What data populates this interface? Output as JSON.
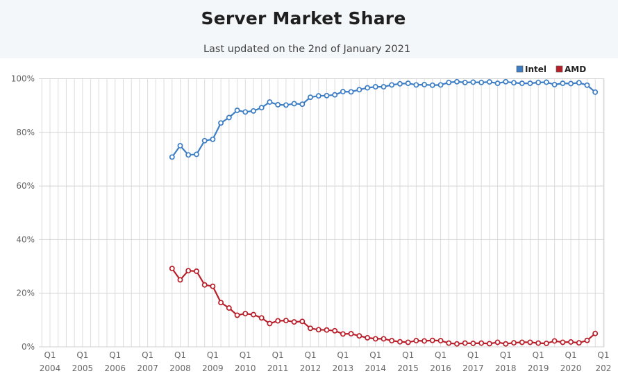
{
  "header": {
    "title": "Server Market Share",
    "subtitle": "Last updated on the 2nd of January 2021"
  },
  "chart_data": {
    "type": "line",
    "title": "Server Market Share",
    "subtitle": "Last updated on the 2nd of January 2021",
    "xlabel": "",
    "ylabel": "",
    "ylim": [
      0,
      100
    ],
    "y_ticks": [
      "0%",
      "20%",
      "40%",
      "60%",
      "80%",
      "100%"
    ],
    "x_ticks": [
      {
        "q": "Q1",
        "year": "2004"
      },
      {
        "q": "Q1",
        "year": "2005"
      },
      {
        "q": "Q1",
        "year": "2006"
      },
      {
        "q": "Q1",
        "year": "2007"
      },
      {
        "q": "Q1",
        "year": "2008"
      },
      {
        "q": "Q1",
        "year": "2009"
      },
      {
        "q": "Q1",
        "year": "2010"
      },
      {
        "q": "Q1",
        "year": "2011"
      },
      {
        "q": "Q1",
        "year": "2012"
      },
      {
        "q": "Q1",
        "year": "2013"
      },
      {
        "q": "Q1",
        "year": "2014"
      },
      {
        "q": "Q1",
        "year": "2015"
      },
      {
        "q": "Q1",
        "year": "2016"
      },
      {
        "q": "Q1",
        "year": "2017"
      },
      {
        "q": "Q1",
        "year": "2018"
      },
      {
        "q": "Q1",
        "year": "2019"
      },
      {
        "q": "Q1",
        "year": "2020"
      },
      {
        "q": "Q1",
        "year": "202"
      }
    ],
    "grid": "vertical per quarter, horizontal every 20%",
    "legend_position": "top-right",
    "x_quarters": [
      "2007 Q4",
      "2008 Q1",
      "2008 Q2",
      "2008 Q3",
      "2008 Q4",
      "2009 Q1",
      "2009 Q2",
      "2009 Q3",
      "2009 Q4",
      "2010 Q1",
      "2010 Q2",
      "2010 Q3",
      "2010 Q4",
      "2011 Q1",
      "2011 Q2",
      "2011 Q3",
      "2011 Q4",
      "2012 Q1",
      "2012 Q2",
      "2012 Q3",
      "2012 Q4",
      "2013 Q1",
      "2013 Q2",
      "2013 Q3",
      "2013 Q4",
      "2014 Q1",
      "2014 Q2",
      "2014 Q3",
      "2014 Q4",
      "2015 Q1",
      "2015 Q2",
      "2015 Q3",
      "2015 Q4",
      "2016 Q1",
      "2016 Q2",
      "2016 Q3",
      "2016 Q4",
      "2017 Q1",
      "2017 Q2",
      "2017 Q3",
      "2017 Q4",
      "2018 Q1",
      "2018 Q2",
      "2018 Q3",
      "2018 Q4",
      "2019 Q1",
      "2019 Q2",
      "2019 Q3",
      "2019 Q4",
      "2020 Q1",
      "2020 Q2",
      "2020 Q3",
      "2020 Q4",
      "2021 Q1"
    ],
    "series": [
      {
        "name": "Intel",
        "color": "#3c7dc4",
        "values": [
          70.8,
          75.0,
          71.6,
          71.8,
          76.9,
          77.4,
          83.5,
          85.5,
          88.2,
          87.6,
          88.0,
          89.2,
          91.3,
          90.3,
          90.2,
          90.7,
          90.5,
          93.1,
          93.6,
          93.7,
          94.0,
          95.2,
          95.1,
          95.9,
          96.6,
          97.0,
          97.0,
          97.7,
          98.1,
          98.3,
          97.7,
          97.8,
          97.6,
          97.7,
          98.6,
          98.9,
          98.6,
          98.7,
          98.6,
          98.8,
          98.3,
          98.9,
          98.5,
          98.3,
          98.3,
          98.6,
          98.7,
          97.8,
          98.3,
          98.2,
          98.5,
          97.6,
          95.0,
          null
        ],
        "start_quarter": "2007 Q4"
      },
      {
        "name": "AMD",
        "color": "#b81f2a",
        "values": [
          29.2,
          25.0,
          28.4,
          28.2,
          23.1,
          22.6,
          16.5,
          14.5,
          11.8,
          12.4,
          12.0,
          10.8,
          8.7,
          9.7,
          9.8,
          9.3,
          9.5,
          6.9,
          6.4,
          6.3,
          6.0,
          4.8,
          4.9,
          4.1,
          3.4,
          3.0,
          3.0,
          2.3,
          1.9,
          1.7,
          2.3,
          2.2,
          2.4,
          2.3,
          1.4,
          1.1,
          1.4,
          1.3,
          1.4,
          1.2,
          1.7,
          1.1,
          1.5,
          1.7,
          1.7,
          1.4,
          1.3,
          2.2,
          1.7,
          1.8,
          1.5,
          2.4,
          5.0,
          null
        ],
        "start_quarter": "2007 Q4"
      }
    ]
  }
}
